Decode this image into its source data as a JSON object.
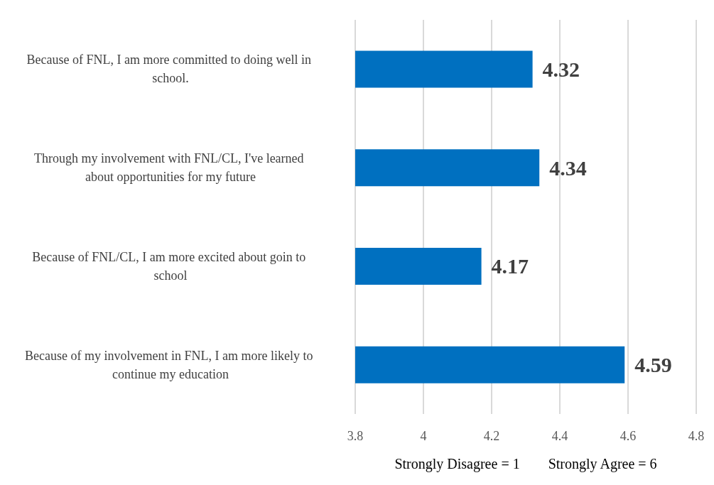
{
  "chart_data": {
    "type": "bar",
    "orientation": "horizontal",
    "xlabel": "Strongly Disagree = 1        Strongly Agree = 6",
    "categories": [
      "Because of FNL, I am more committed to doing well in school.",
      "Through my involvement with FNL/CL, I've learned about opportunities for my future",
      "Because of FNL/CL, I am more excited about goin to school",
      "Because of my involvement in FNL, I am more likely to continue my education"
    ],
    "values": [
      4.32,
      4.34,
      4.17,
      4.59
    ],
    "color": "#0070c0",
    "xlim": [
      3.8,
      4.8
    ],
    "xticks": [
      3.8,
      4,
      4.2,
      4.4,
      4.6,
      4.8
    ],
    "grid": "x",
    "data_labels": true
  }
}
